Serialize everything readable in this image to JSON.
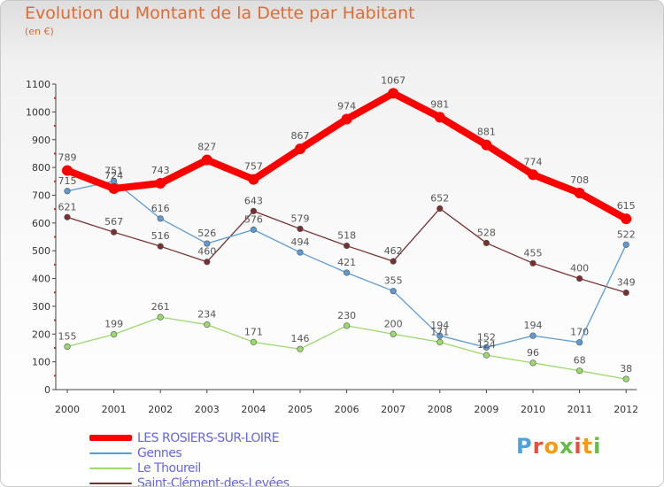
{
  "title": "Evolution du Montant de la Dette par Habitant",
  "subtitle": "(en €)",
  "logo": {
    "text": "Proxiti",
    "colors": [
      "#4aa3df",
      "#e84e3c",
      "#f39c12",
      "#66bb44",
      "#e84e3c",
      "#f39c12",
      "#66bb44"
    ]
  },
  "chart_data": {
    "type": "line",
    "title": "Evolution du Montant de la Dette par Habitant",
    "ylabel": "(en €)",
    "xlabel": "",
    "ylim": [
      0,
      1100
    ],
    "yticks": [
      0,
      100,
      200,
      300,
      400,
      500,
      600,
      700,
      800,
      900,
      1000,
      1100
    ],
    "x": [
      "2000",
      "2001",
      "2002",
      "2003",
      "2004",
      "2005",
      "2006",
      "2007",
      "2008",
      "2009",
      "2010",
      "2011",
      "2012"
    ],
    "grid": false,
    "legend": "bottom-left",
    "series": [
      {
        "name": "LES ROSIERS-SUR-LOIRE",
        "color": "#ff0000",
        "width": 8,
        "values": [
          789,
          724,
          743,
          827,
          757,
          867,
          974,
          1067,
          981,
          881,
          774,
          708,
          615
        ]
      },
      {
        "name": "Gennes",
        "color": "#5b9bd5",
        "width": 1.3,
        "values": [
          715,
          751,
          616,
          526,
          576,
          494,
          421,
          355,
          194,
          152,
          194,
          170,
          522
        ]
      },
      {
        "name": "Le Thoureil",
        "color": "#9ad96b",
        "width": 1.3,
        "values": [
          155,
          199,
          261,
          234,
          171,
          146,
          230,
          200,
          171,
          124,
          96,
          68,
          38
        ]
      },
      {
        "name": "Saint-Clément-des-Levées",
        "color": "#7a2e2e",
        "width": 1.3,
        "values": [
          621,
          567,
          516,
          460,
          643,
          579,
          518,
          462,
          652,
          528,
          455,
          400,
          349
        ]
      }
    ]
  }
}
